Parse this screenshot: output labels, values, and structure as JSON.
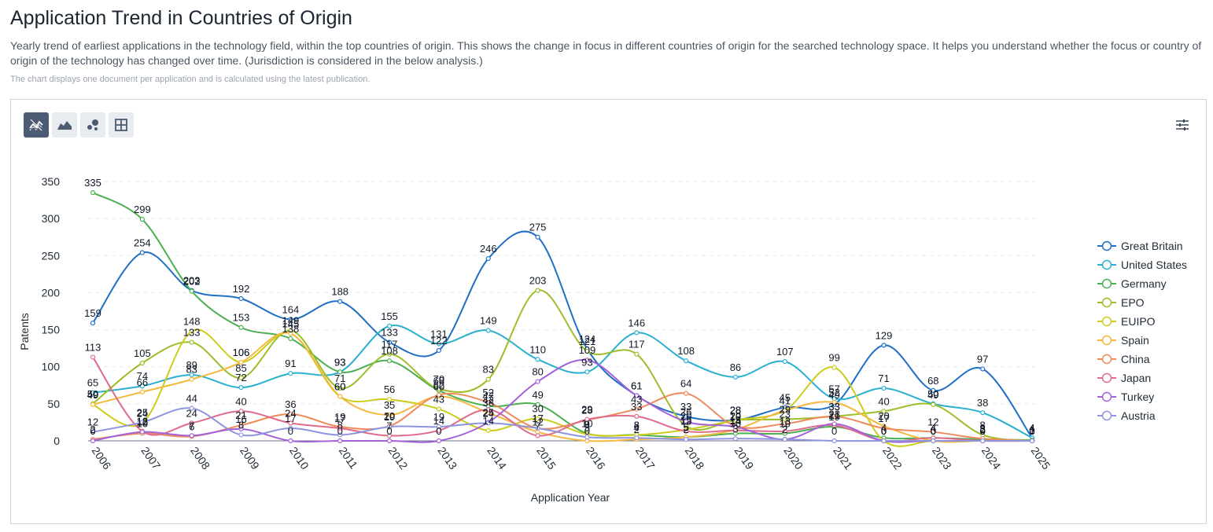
{
  "header": {
    "title": "Application Trend in Countries of Origin",
    "description": "Yearly trend of earliest applications in the technology field, within the top countries of origin. This shows the change in focus in different countries of origin for the searched technology space. It helps you understand whether the focus or country of origin of the technology has changed over time. (Jurisdiction is considered in the below analysis.)",
    "note": "The chart displays one document per application and is calculated using the latest publication."
  },
  "toolbar": {
    "buttons": [
      {
        "id": "line",
        "icon": "line-chart-icon",
        "active": true
      },
      {
        "id": "area",
        "icon": "area-chart-icon",
        "active": false
      },
      {
        "id": "bubble",
        "icon": "bubble-chart-icon",
        "active": false
      },
      {
        "id": "table",
        "icon": "table-grid-icon",
        "active": false
      }
    ],
    "menu_icon": "sliders-icon"
  },
  "chart_data": {
    "type": "line",
    "xlabel": "Application Year",
    "ylabel": "Patents",
    "ylim": [
      0,
      350
    ],
    "yticks": [
      0,
      50,
      100,
      150,
      200,
      250,
      300,
      350
    ],
    "grid": true,
    "legend_position": "right",
    "x": [
      "2006",
      "2007",
      "2008",
      "2009",
      "2010",
      "2011",
      "2012",
      "2013",
      "2014",
      "2015",
      "2016",
      "2017",
      "2018",
      "2019",
      "2020",
      "2021",
      "2022",
      "2023",
      "2024",
      "2025"
    ],
    "series": [
      {
        "name": "Great Britain",
        "color": "#1f6fc5",
        "values": [
          159,
          254,
          203,
          192,
          164,
          188,
          133,
          122,
          246,
          275,
          124,
          61,
          33,
          28,
          45,
          49,
          129,
          68,
          97,
          4
        ]
      },
      {
        "name": "United States",
        "color": "#2bb0cf",
        "values": [
          65,
          74,
          89,
          72,
          91,
          93,
          155,
          131,
          149,
          110,
          93,
          146,
          108,
          86,
          107,
          57,
          71,
          50,
          38,
          4
        ]
      },
      {
        "name": "Germany",
        "color": "#4caf50",
        "values": [
          335,
          299,
          202,
          153,
          138,
          93,
          108,
          68,
          47,
          49,
          10,
          8,
          5,
          10,
          10,
          19,
          4,
          4,
          2,
          1
        ]
      },
      {
        "name": "EPO",
        "color": "#9cbe28",
        "values": [
          50,
          105,
          133,
          85,
          149,
          71,
          117,
          70,
          83,
          203,
          121,
          117,
          20,
          28,
          29,
          33,
          40,
          49,
          8,
          0
        ]
      },
      {
        "name": "EUIPO",
        "color": "#cccc1a",
        "values": [
          49,
          24,
          148,
          106,
          145,
          60,
          56,
          43,
          14,
          30,
          9,
          8,
          15,
          28,
          41,
          99,
          0,
          0,
          0,
          0
        ]
      },
      {
        "name": "Spain",
        "color": "#f5b83d",
        "values": [
          49,
          66,
          83,
          106,
          145,
          60,
          35,
          60,
          38,
          12,
          0,
          2,
          5,
          15,
          41,
          52,
          20,
          0,
          0,
          0
        ]
      },
      {
        "name": "China",
        "color": "#ee8a5c",
        "values": [
          2,
          10,
          6,
          21,
          36,
          19,
          20,
          62,
          52,
          17,
          28,
          43,
          64,
          20,
          23,
          33,
          17,
          12,
          3,
          0
        ]
      },
      {
        "name": "Japan",
        "color": "#e06b8a",
        "values": [
          113,
          13,
          24,
          40,
          24,
          17,
          7,
          14,
          42,
          7,
          29,
          33,
          13,
          14,
          13,
          21,
          0,
          4,
          0,
          0
        ]
      },
      {
        "name": "Turkey",
        "color": "#a461d8",
        "values": [
          0,
          12,
          7,
          16,
          0,
          0,
          0,
          0,
          25,
          80,
          109,
          61,
          26,
          19,
          2,
          23,
          0,
          0,
          0,
          0
        ]
      },
      {
        "name": "Austria",
        "color": "#8f94de",
        "values": [
          12,
          25,
          44,
          8,
          17,
          8,
          19,
          19,
          24,
          17,
          5,
          4,
          2,
          3,
          2,
          0,
          0,
          0,
          0,
          0
        ]
      }
    ]
  }
}
